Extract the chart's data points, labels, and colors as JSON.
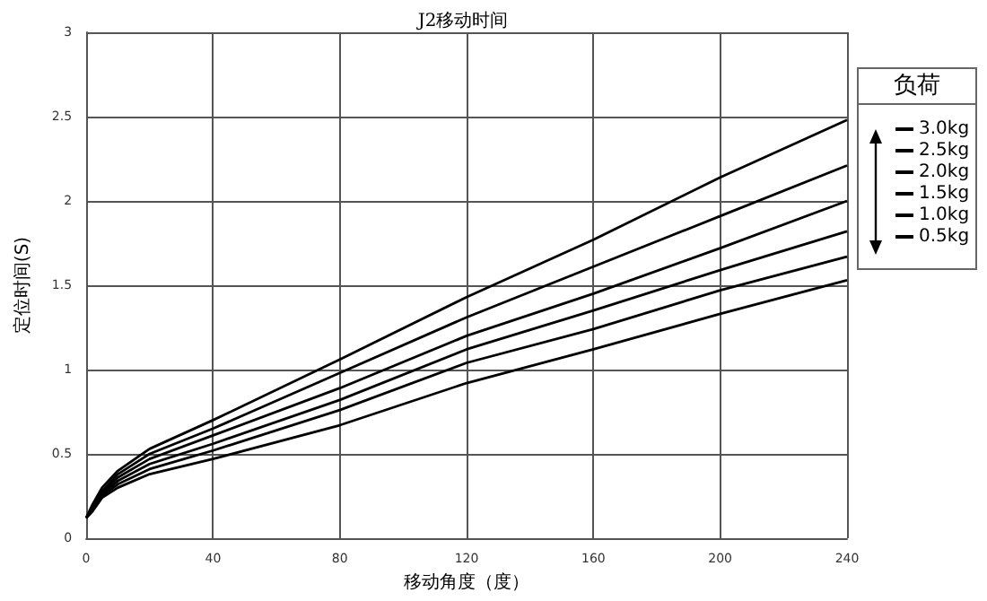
{
  "chart_data": {
    "type": "line",
    "title": "J2移动时间",
    "xlabel": "移动角度（度）",
    "ylabel": "定位时间(S)",
    "legend_title": "负荷",
    "x": [
      0,
      2,
      5,
      10,
      20,
      40,
      80,
      120,
      160,
      200,
      240
    ],
    "series": [
      {
        "name": "3.0kg",
        "color": "#000000",
        "values": [
          0.12,
          0.2,
          0.3,
          0.4,
          0.53,
          0.7,
          1.06,
          1.43,
          1.77,
          2.14,
          2.48
        ]
      },
      {
        "name": "2.5kg",
        "color": "#000000",
        "values": [
          0.12,
          0.19,
          0.28,
          0.38,
          0.5,
          0.65,
          0.98,
          1.31,
          1.61,
          1.91,
          2.21
        ]
      },
      {
        "name": "2.0kg",
        "color": "#000000",
        "values": [
          0.12,
          0.18,
          0.27,
          0.36,
          0.47,
          0.61,
          0.89,
          1.2,
          1.45,
          1.72,
          2.0
        ]
      },
      {
        "name": "1.5kg",
        "color": "#000000",
        "values": [
          0.12,
          0.17,
          0.26,
          0.34,
          0.44,
          0.56,
          0.82,
          1.12,
          1.35,
          1.59,
          1.82
        ]
      },
      {
        "name": "1.0kg",
        "color": "#000000",
        "values": [
          0.12,
          0.17,
          0.25,
          0.32,
          0.41,
          0.52,
          0.76,
          1.04,
          1.24,
          1.47,
          1.67
        ]
      },
      {
        "name": "0.5kg",
        "color": "#000000",
        "values": [
          0.12,
          0.16,
          0.24,
          0.3,
          0.38,
          0.47,
          0.67,
          0.92,
          1.12,
          1.33,
          1.53
        ]
      }
    ],
    "xlim": [
      0,
      240
    ],
    "xticks": [
      0,
      40,
      80,
      120,
      160,
      200,
      240
    ],
    "ylim": [
      0,
      3
    ],
    "yticks": [
      0,
      0.5,
      1,
      1.5,
      2,
      2.5,
      3
    ],
    "grid": true,
    "legend": "right",
    "marker": "none",
    "line_style": "solid"
  }
}
